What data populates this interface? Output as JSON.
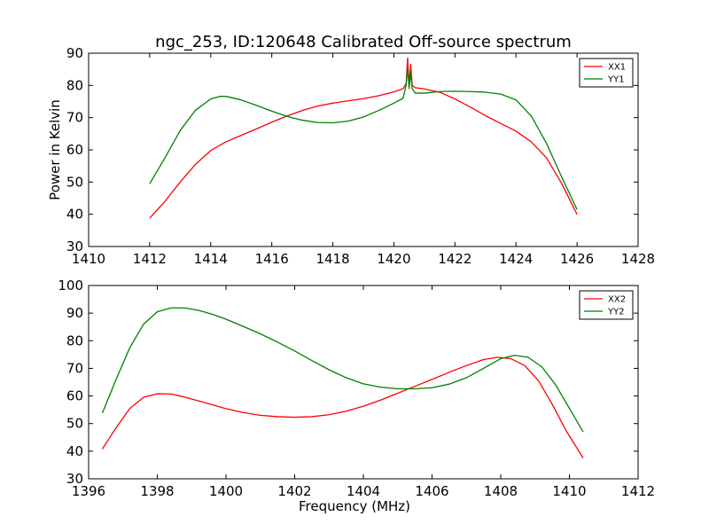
{
  "title": "ngc_253, ID:120648 Calibrated Off-source spectrum",
  "chart_data": [
    {
      "type": "line",
      "title": "ngc_253, ID:120648 Calibrated Off-source spectrum",
      "xlabel": "",
      "ylabel": "Power in Kelvin",
      "xlim": [
        1410,
        1428
      ],
      "ylim": [
        30,
        90
      ],
      "xticks": [
        "1410",
        "1412",
        "1414",
        "1416",
        "1418",
        "1420",
        "1422",
        "1424",
        "1426",
        "1428"
      ],
      "yticks": [
        "30",
        "40",
        "50",
        "60",
        "70",
        "80",
        "90"
      ],
      "grid": false,
      "legend": "top-right",
      "series": [
        {
          "name": "XX1",
          "color": "#ff0000",
          "x": [
            1412.0,
            1412.5,
            1413.0,
            1413.5,
            1414.0,
            1414.5,
            1415.0,
            1415.5,
            1416.0,
            1416.5,
            1417.0,
            1417.5,
            1418.0,
            1418.5,
            1419.0,
            1419.5,
            1420.0,
            1420.3,
            1420.4,
            1420.45,
            1420.5,
            1420.55,
            1420.6,
            1420.7,
            1421.0,
            1421.5,
            1422.0,
            1422.5,
            1423.0,
            1423.5,
            1424.0,
            1424.5,
            1425.0,
            1425.5,
            1426.0
          ],
          "y": [
            38.8,
            44.0,
            50.0,
            55.5,
            59.8,
            62.5,
            64.5,
            66.5,
            68.6,
            70.5,
            72.2,
            73.6,
            74.5,
            75.2,
            75.9,
            76.8,
            78.0,
            79.0,
            80.5,
            88.5,
            80.0,
            86.5,
            80.0,
            79.3,
            78.9,
            77.9,
            75.8,
            73.3,
            70.6,
            68.2,
            65.8,
            62.5,
            57.5,
            49.5,
            40.0
          ]
        },
        {
          "name": "YY1",
          "color": "#008000",
          "x": [
            1412.0,
            1412.5,
            1413.0,
            1413.5,
            1414.0,
            1414.3,
            1414.5,
            1415.0,
            1415.5,
            1416.0,
            1416.5,
            1417.0,
            1417.5,
            1418.0,
            1418.5,
            1419.0,
            1419.5,
            1420.0,
            1420.3,
            1420.4,
            1420.45,
            1420.5,
            1420.55,
            1420.6,
            1420.7,
            1421.0,
            1421.5,
            1422.0,
            1422.5,
            1423.0,
            1423.5,
            1424.0,
            1424.5,
            1425.0,
            1425.5,
            1426.0
          ],
          "y": [
            49.5,
            57.5,
            66.0,
            72.3,
            75.8,
            76.6,
            76.6,
            75.5,
            73.8,
            72.0,
            70.4,
            69.2,
            68.5,
            68.4,
            68.9,
            70.2,
            72.2,
            74.5,
            76.0,
            80.0,
            85.5,
            79.0,
            84.0,
            79.0,
            77.6,
            77.6,
            78.1,
            78.2,
            78.1,
            77.9,
            77.3,
            75.5,
            70.5,
            62.0,
            51.5,
            41.5
          ]
        }
      ]
    },
    {
      "type": "line",
      "title": "",
      "xlabel": "Frequency (MHz)",
      "ylabel": "",
      "xlim": [
        1396,
        1412
      ],
      "ylim": [
        30,
        100
      ],
      "xticks": [
        "1396",
        "1398",
        "1400",
        "1402",
        "1404",
        "1406",
        "1408",
        "1410",
        "1412"
      ],
      "yticks": [
        "30",
        "40",
        "50",
        "60",
        "70",
        "80",
        "90",
        "100"
      ],
      "grid": false,
      "legend": "top-right",
      "series": [
        {
          "name": "XX2",
          "color": "#ff0000",
          "x": [
            1396.4,
            1396.8,
            1397.2,
            1397.6,
            1398.0,
            1398.4,
            1398.8,
            1399.2,
            1399.6,
            1400.0,
            1400.5,
            1401.0,
            1401.5,
            1402.0,
            1402.5,
            1403.0,
            1403.5,
            1404.0,
            1404.5,
            1405.0,
            1405.5,
            1406.0,
            1406.5,
            1407.0,
            1407.5,
            1407.9,
            1408.3,
            1408.7,
            1409.1,
            1409.5,
            1409.9,
            1410.4
          ],
          "y": [
            40.8,
            48.5,
            55.5,
            59.5,
            60.8,
            60.7,
            59.6,
            58.2,
            56.8,
            55.4,
            54.0,
            53.0,
            52.5,
            52.3,
            52.5,
            53.2,
            54.5,
            56.3,
            58.5,
            61.0,
            63.5,
            66.0,
            68.6,
            71.0,
            73.2,
            74.0,
            73.5,
            71.0,
            65.5,
            57.0,
            47.5,
            37.5
          ]
        },
        {
          "name": "YY2",
          "color": "#008000",
          "x": [
            1396.4,
            1396.8,
            1397.2,
            1397.6,
            1398.0,
            1398.4,
            1398.8,
            1399.2,
            1399.6,
            1400.0,
            1400.5,
            1401.0,
            1401.5,
            1402.0,
            1402.5,
            1403.0,
            1403.5,
            1404.0,
            1404.5,
            1405.0,
            1405.5,
            1406.0,
            1406.5,
            1407.0,
            1407.5,
            1408.0,
            1408.4,
            1408.8,
            1409.2,
            1409.6,
            1410.0,
            1410.4
          ],
          "y": [
            53.8,
            66.0,
            77.5,
            86.0,
            90.5,
            91.9,
            91.9,
            91.0,
            89.6,
            87.8,
            85.2,
            82.5,
            79.5,
            76.3,
            72.8,
            69.5,
            66.6,
            64.4,
            63.2,
            62.6,
            62.6,
            63.0,
            64.3,
            66.6,
            70.0,
            73.5,
            74.7,
            74.0,
            70.5,
            64.0,
            55.5,
            47.0
          ]
        }
      ]
    }
  ]
}
